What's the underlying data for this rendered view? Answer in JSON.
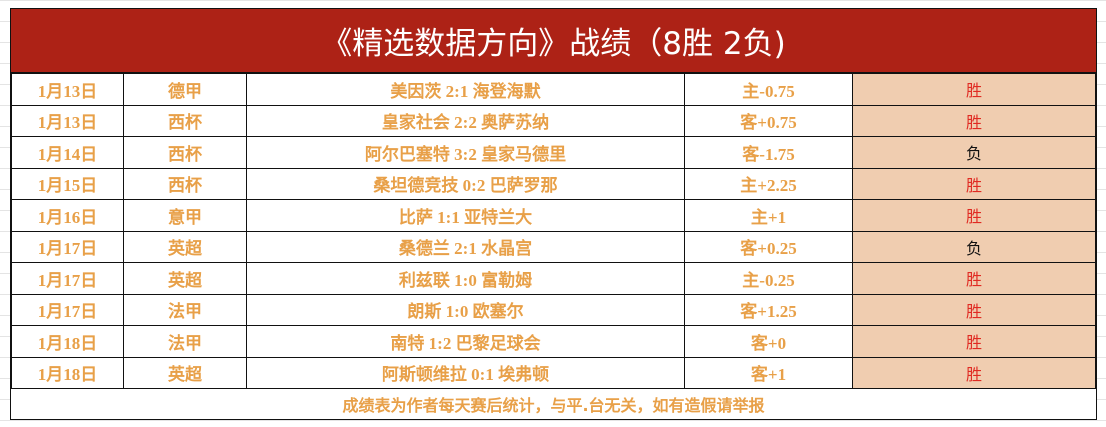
{
  "title": "《精选数据方向》战绩（8胜 2负)",
  "rows": [
    {
      "date": "1月13日",
      "league": "德甲",
      "match": "美因茨 2:1 海登海默",
      "handicap": "主-0.75",
      "result": "胜"
    },
    {
      "date": "1月13日",
      "league": "西杯",
      "match": "皇家社会 2:2 奥萨苏纳",
      "handicap": "客+0.75",
      "result": "胜"
    },
    {
      "date": "1月14日",
      "league": "西杯",
      "match": "阿尔巴塞特 3:2 皇家马德里",
      "handicap": "客-1.75",
      "result": "负"
    },
    {
      "date": "1月15日",
      "league": "西杯",
      "match": "桑坦德竞技 0:2 巴萨罗那",
      "handicap": "主+2.25",
      "result": "胜"
    },
    {
      "date": "1月16日",
      "league": "意甲",
      "match": "比萨 1:1 亚特兰大",
      "handicap": "主+1",
      "result": "胜"
    },
    {
      "date": "1月17日",
      "league": "英超",
      "match": "桑德兰 2:1 水晶宫",
      "handicap": "客+0.25",
      "result": "负"
    },
    {
      "date": "1月17日",
      "league": "英超",
      "match": "利兹联 1:0 富勒姆",
      "handicap": "主-0.25",
      "result": "胜"
    },
    {
      "date": "1月17日",
      "league": "法甲",
      "match": "朗斯 1:0 欧塞尔",
      "handicap": "客+1.25",
      "result": "胜"
    },
    {
      "date": "1月18日",
      "league": "法甲",
      "match": "南特 1:2 巴黎足球会",
      "handicap": "客+0",
      "result": "胜"
    },
    {
      "date": "1月18日",
      "league": "英超",
      "match": "阿斯顿维拉 0:1 埃弗顿",
      "handicap": "客+1",
      "result": "胜"
    }
  ],
  "footer": "成绩表为作者每天赛后统计，与平.台无关，如有造假请举报",
  "colors": {
    "header_bg": "#ad2216",
    "text": "#e8a048",
    "win": "#e02a22",
    "result_bg": "#f0cdb0"
  }
}
